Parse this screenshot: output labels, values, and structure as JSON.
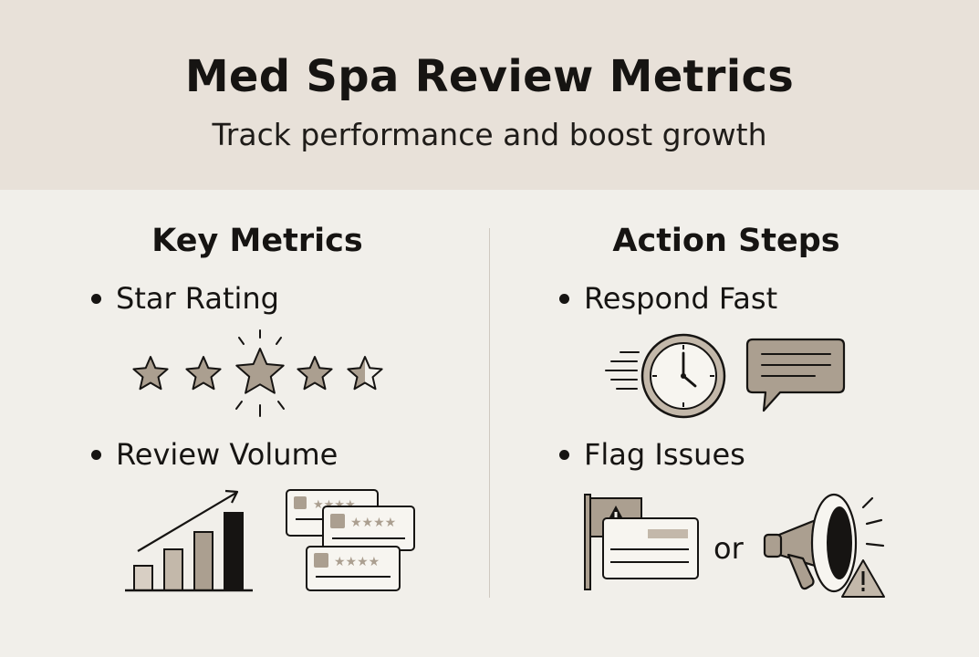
{
  "header": {
    "title": "Med Spa Review Metrics",
    "subtitle": "Track performance and boost growth"
  },
  "left": {
    "heading": "Key Metrics",
    "items": [
      {
        "label": "Star Rating",
        "icons": [
          "star-rating-icon"
        ]
      },
      {
        "label": "Review Volume",
        "icons": [
          "bar-chart-growth-icon",
          "review-cards-icon"
        ]
      }
    ]
  },
  "right": {
    "heading": "Action Steps",
    "items": [
      {
        "label": "Respond Fast",
        "icons": [
          "fast-clock-icon",
          "chat-bubble-icon"
        ]
      },
      {
        "label": "Flag Issues",
        "icons": [
          "warning-flag-icon",
          "megaphone-alert-icon"
        ],
        "connector": "or"
      }
    ]
  },
  "colors": {
    "header_bg": "#e8e1d9",
    "page_bg": "#f1efea",
    "accent_taupe": "#ab9f90",
    "ink": "#161412"
  }
}
